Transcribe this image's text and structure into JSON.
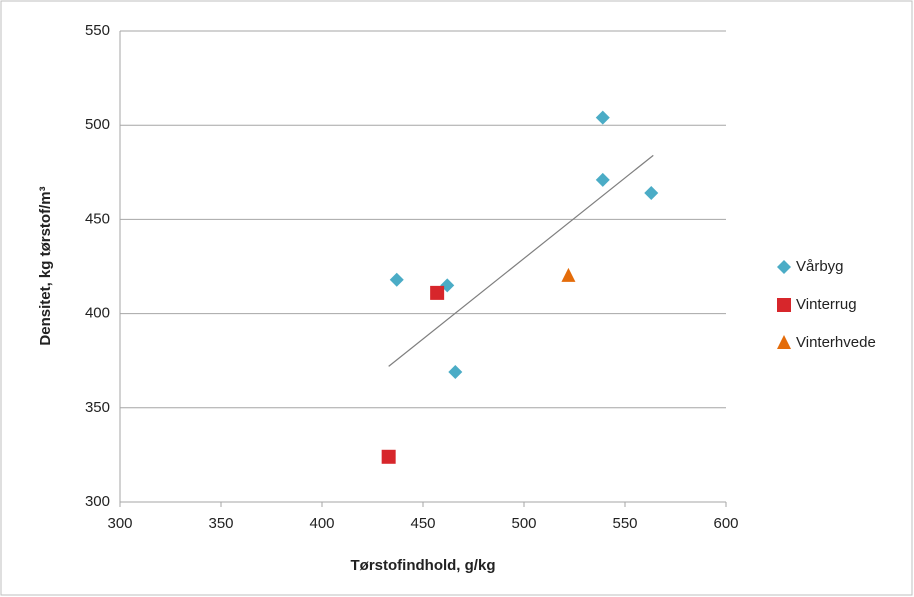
{
  "chart_data": {
    "type": "scatter",
    "xlabel": "Tørstofindhold, g/kg",
    "ylabel": "Densitet, kg tørstof/m³",
    "xlim": [
      300,
      600
    ],
    "xticks": [
      300,
      350,
      400,
      450,
      500,
      550,
      600
    ],
    "ylim": [
      300,
      550
    ],
    "yticks": [
      300,
      350,
      400,
      450,
      500,
      550
    ],
    "grid": true,
    "legend": "right",
    "series": [
      {
        "name": "Vårbyg",
        "color": "#4bacc6",
        "marker": "diamond",
        "x": [
          437,
          462,
          466,
          539,
          539,
          563
        ],
        "y": [
          418,
          415,
          369,
          504,
          471,
          464
        ]
      },
      {
        "name": "Vinterrug",
        "color": "#d7262b",
        "marker": "square",
        "x": [
          433,
          457
        ],
        "y": [
          324,
          411
        ]
      },
      {
        "name": "Vinterhvede",
        "color": "#e46c0a",
        "marker": "triangle",
        "x": [
          522
        ],
        "y": [
          420
        ]
      }
    ],
    "trendline": {
      "color": "#7f7f7f",
      "x": [
        433,
        564
      ],
      "y": [
        372,
        484
      ]
    }
  }
}
